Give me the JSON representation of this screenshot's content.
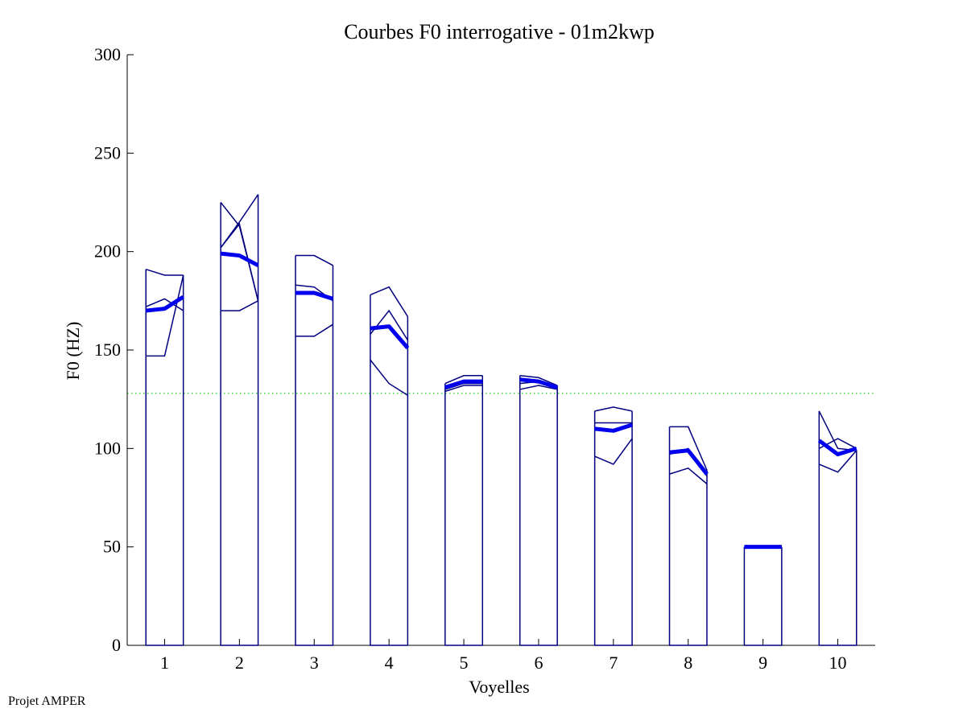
{
  "footer": "Projet AMPER",
  "chart_data": {
    "type": "line",
    "title": "Courbes F0 interrogative - 01m2kwp",
    "xlabel": "Voyelles",
    "ylabel": "F0 (HZ)",
    "xlim": [
      0.5,
      10.5
    ],
    "ylim": [
      0,
      300
    ],
    "x_ticks": [
      1,
      2,
      3,
      4,
      5,
      6,
      7,
      8,
      9,
      10
    ],
    "y_ticks": [
      0,
      50,
      100,
      150,
      200,
      250,
      300
    ],
    "reference_line": {
      "y": 128,
      "style": "dotted",
      "color": "#00cc00"
    },
    "colors": {
      "thin": "#000080",
      "mean": "#0000ee"
    },
    "vowels": [
      {
        "x": 1,
        "box_top": [
          191,
          188,
          188
        ],
        "thin_curves": [
          [
            191,
            188,
            188
          ],
          [
            172,
            176,
            170
          ],
          [
            147,
            147,
            188
          ]
        ],
        "mean_curve": [
          170,
          171,
          177
        ]
      },
      {
        "x": 2,
        "box_top": [
          225,
          213,
          229
        ],
        "thin_curves": [
          [
            225,
            213,
            175
          ],
          [
            202,
            214,
            175
          ],
          [
            170,
            170,
            175
          ],
          [
            202,
            215,
            229
          ]
        ],
        "mean_curve": [
          199,
          198,
          193
        ]
      },
      {
        "x": 3,
        "box_top": [
          198,
          198,
          193
        ],
        "thin_curves": [
          [
            198,
            198,
            193
          ],
          [
            183,
            182,
            175
          ],
          [
            157,
            157,
            163
          ]
        ],
        "mean_curve": [
          179,
          179,
          176
        ]
      },
      {
        "x": 4,
        "box_top": [
          178,
          182,
          167
        ],
        "thin_curves": [
          [
            178,
            182,
            167
          ],
          [
            158,
            170,
            155
          ],
          [
            145,
            133,
            127
          ]
        ],
        "mean_curve": [
          161,
          162,
          151
        ]
      },
      {
        "x": 5,
        "box_top": [
          133,
          137,
          137
        ],
        "thin_curves": [
          [
            133,
            137,
            137
          ],
          [
            130,
            133,
            133
          ],
          [
            129,
            132,
            132
          ]
        ],
        "mean_curve": [
          131,
          134,
          134
        ]
      },
      {
        "x": 6,
        "box_top": [
          137,
          136,
          132
        ],
        "thin_curves": [
          [
            137,
            136,
            132
          ],
          [
            133,
            134,
            131
          ],
          [
            130,
            132,
            130
          ]
        ],
        "mean_curve": [
          135,
          134,
          131
        ]
      },
      {
        "x": 7,
        "box_top": [
          119,
          121,
          119
        ],
        "thin_curves": [
          [
            119,
            121,
            119
          ],
          [
            113,
            113,
            113
          ],
          [
            96,
            92,
            105
          ]
        ],
        "mean_curve": [
          110,
          109,
          112
        ]
      },
      {
        "x": 8,
        "box_top": [
          111,
          111,
          89
        ],
        "thin_curves": [
          [
            111,
            111,
            89
          ],
          [
            87,
            90,
            82
          ],
          [
            97,
            100,
            86
          ]
        ],
        "mean_curve": [
          98,
          99,
          87
        ]
      },
      {
        "x": 9,
        "box_top": [
          50,
          50,
          50
        ],
        "thin_curves": [
          [
            50,
            50,
            50
          ]
        ],
        "mean_curve": [
          50,
          50,
          50
        ]
      },
      {
        "x": 10,
        "box_top": [
          119,
          100,
          99
        ],
        "thin_curves": [
          [
            119,
            100,
            99
          ],
          [
            92,
            88,
            99
          ],
          [
            100,
            105,
            100
          ]
        ],
        "mean_curve": [
          104,
          97,
          100
        ]
      }
    ]
  }
}
